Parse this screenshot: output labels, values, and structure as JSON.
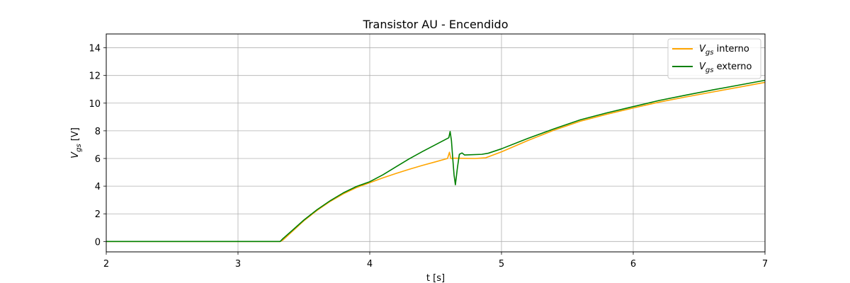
{
  "chart_data": {
    "type": "line",
    "title": "Transistor AU - Encendido",
    "xlabel": "t [s]",
    "ylabel": {
      "main": "V",
      "sub": "gs",
      "unit": " [V]"
    },
    "xlim": [
      2,
      7
    ],
    "ylim": [
      -0.75,
      15
    ],
    "xticks": [
      2,
      3,
      4,
      5,
      6,
      7
    ],
    "yticks": [
      0,
      2,
      4,
      6,
      8,
      10,
      12,
      14
    ],
    "grid": true,
    "legend_position": "top-right",
    "series": [
      {
        "name": {
          "main": "V",
          "sub": "gs",
          "rest": " interno"
        },
        "color": "#ffa500",
        "points": [
          [
            2,
            0
          ],
          [
            3.32,
            0
          ],
          [
            3.34,
            0.1
          ],
          [
            3.4,
            0.62
          ],
          [
            3.5,
            1.5
          ],
          [
            3.6,
            2.25
          ],
          [
            3.7,
            2.9
          ],
          [
            3.8,
            3.45
          ],
          [
            3.9,
            3.9
          ],
          [
            4.0,
            4.25
          ],
          [
            4.1,
            4.6
          ],
          [
            4.2,
            4.92
          ],
          [
            4.3,
            5.22
          ],
          [
            4.4,
            5.5
          ],
          [
            4.5,
            5.76
          ],
          [
            4.59,
            6.0
          ],
          [
            4.605,
            6.45
          ],
          [
            4.615,
            6.0
          ],
          [
            4.64,
            6.02
          ],
          [
            4.8,
            6.0
          ],
          [
            4.88,
            6.05
          ],
          [
            4.95,
            6.3
          ],
          [
            5.0,
            6.48
          ],
          [
            5.2,
            7.3
          ],
          [
            5.4,
            8.05
          ],
          [
            5.6,
            8.7
          ],
          [
            5.8,
            9.2
          ],
          [
            6.0,
            9.65
          ],
          [
            6.2,
            10.08
          ],
          [
            6.4,
            10.45
          ],
          [
            6.6,
            10.8
          ],
          [
            6.8,
            11.15
          ],
          [
            7.0,
            11.5
          ]
        ]
      },
      {
        "name": {
          "main": "V",
          "sub": "gs",
          "rest": " externo"
        },
        "color": "#008000",
        "points": [
          [
            2,
            0
          ],
          [
            3.32,
            0
          ],
          [
            3.34,
            0.2
          ],
          [
            3.4,
            0.7
          ],
          [
            3.5,
            1.55
          ],
          [
            3.6,
            2.3
          ],
          [
            3.7,
            2.95
          ],
          [
            3.8,
            3.52
          ],
          [
            3.9,
            3.98
          ],
          [
            4.0,
            4.32
          ],
          [
            4.1,
            4.82
          ],
          [
            4.2,
            5.4
          ],
          [
            4.3,
            5.98
          ],
          [
            4.4,
            6.5
          ],
          [
            4.5,
            7.0
          ],
          [
            4.6,
            7.5
          ],
          [
            4.61,
            7.95
          ],
          [
            4.62,
            7.3
          ],
          [
            4.63,
            6.0
          ],
          [
            4.64,
            4.8
          ],
          [
            4.65,
            4.1
          ],
          [
            4.665,
            5.3
          ],
          [
            4.68,
            6.3
          ],
          [
            4.7,
            6.4
          ],
          [
            4.72,
            6.25
          ],
          [
            4.85,
            6.3
          ],
          [
            4.9,
            6.38
          ],
          [
            5.0,
            6.7
          ],
          [
            5.2,
            7.45
          ],
          [
            5.4,
            8.15
          ],
          [
            5.6,
            8.8
          ],
          [
            5.8,
            9.3
          ],
          [
            6.0,
            9.75
          ],
          [
            6.2,
            10.2
          ],
          [
            6.4,
            10.58
          ],
          [
            6.6,
            10.95
          ],
          [
            6.8,
            11.3
          ],
          [
            7.0,
            11.65
          ]
        ]
      }
    ]
  }
}
